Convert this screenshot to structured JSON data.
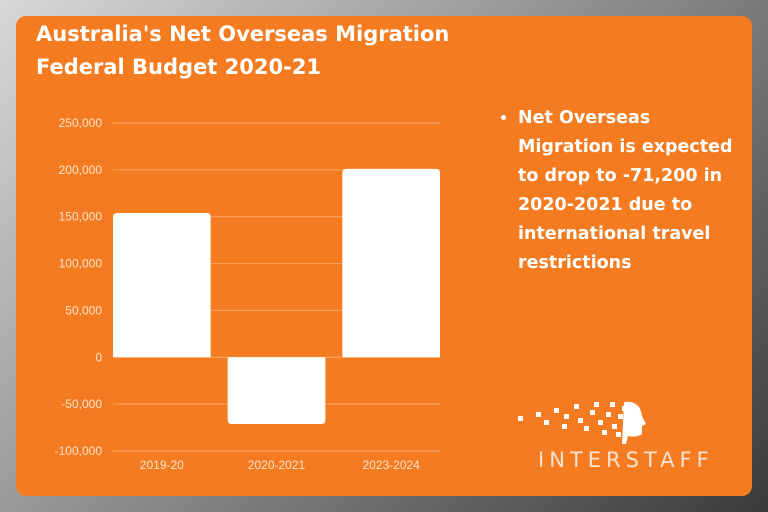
{
  "title_lines": [
    "Australia's Net Overseas Migration",
    "Federal Budget 2020-21"
  ],
  "bullets": [
    "Net Overseas Migration is expected to drop to -71,200 in 2020-2021 due to international travel restrictions"
  ],
  "logo": {
    "text": "INTERSTAFF"
  },
  "colors": {
    "card": "#F47B20",
    "bar": "#FFFFFF",
    "text": "#FFFFFF"
  },
  "chart_data": {
    "type": "bar",
    "title": "Australia's Net Overseas Migration Federal Budget 2020-21",
    "categories": [
      "2019-20",
      "2020-2021",
      "2023-2024"
    ],
    "values": [
      154000,
      -71200,
      201000
    ],
    "ylim": [
      -100000,
      250000
    ],
    "yticks": [
      250000,
      200000,
      150000,
      100000,
      50000,
      0,
      -50000,
      -100000
    ],
    "ytick_labels": [
      "250,000",
      "200,000",
      "150,000",
      "100,000",
      "50,000",
      "0",
      "-50,000",
      "-100,000"
    ],
    "grid": true,
    "xlabel": "",
    "ylabel": ""
  }
}
